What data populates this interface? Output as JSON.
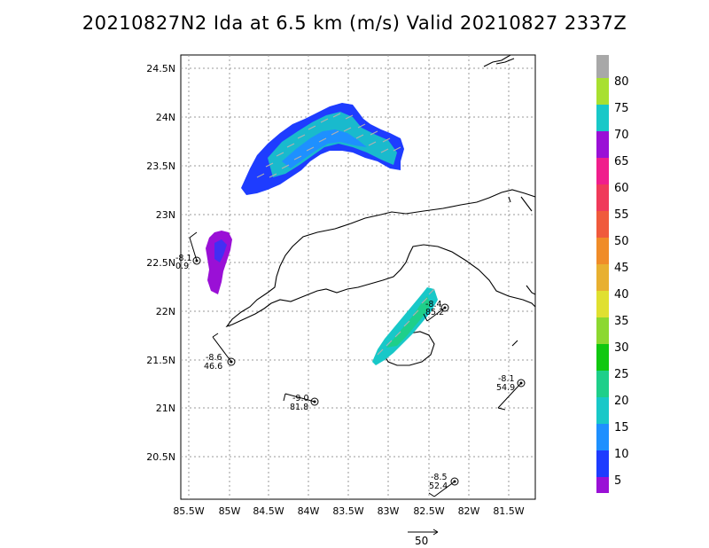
{
  "title": "20210827N2 Ida at 6.5 km (m/s) Valid 20210827  2337Z",
  "lat_labels": [
    "24.5N",
    "24N",
    "23.5N",
    "23N",
    "22.5N",
    "22N",
    "21.5N",
    "21N",
    "20.5N"
  ],
  "lon_labels": [
    "85.5W",
    "85W",
    "84.5W",
    "84W",
    "83.5W",
    "83W",
    "82.5W",
    "82W",
    "81.5W"
  ],
  "colorbar": {
    "labels": [
      "5",
      "10",
      "15",
      "20",
      "25",
      "30",
      "35",
      "40",
      "45",
      "50",
      "55",
      "60",
      "65",
      "70",
      "75",
      "80"
    ],
    "colors": [
      "#9a10d6",
      "#1e3cff",
      "#1e90ff",
      "#18c8c8",
      "#1ecf8a",
      "#10c810",
      "#8cd830",
      "#e0e030",
      "#e8b030",
      "#f08c28",
      "#f05a3c",
      "#f03a5a",
      "#f01e8c",
      "#9a10d6",
      "#18c8c8",
      "#a8e030",
      "#a8a8a8"
    ]
  },
  "stations": [
    {
      "line1": "-8.1",
      "line2": "0.9"
    },
    {
      "line1": "-8.4",
      "line2": "85.2"
    },
    {
      "line1": "-8.6",
      "line2": "46.6"
    },
    {
      "line1": "-9.0",
      "line2": "81.8"
    },
    {
      "line1": "-8.1",
      "line2": "54.9"
    },
    {
      "line1": "-8.5",
      "line2": "52.4"
    }
  ],
  "reference_vector": {
    "label": "50"
  }
}
